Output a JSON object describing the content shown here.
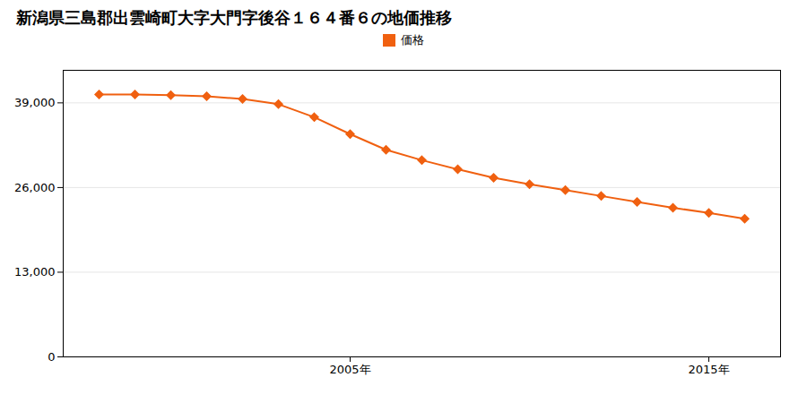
{
  "chart_data": {
    "type": "line",
    "title": "新潟県三島郡出雲崎町大字大門字後谷１６４番６の地価推移",
    "x": [
      1998,
      1999,
      2000,
      2001,
      2002,
      2003,
      2004,
      2005,
      2006,
      2007,
      2008,
      2009,
      2010,
      2011,
      2012,
      2013,
      2014,
      2015,
      2016
    ],
    "series": [
      {
        "name": "価格",
        "color": "#f06010",
        "marker": "diamond",
        "values": [
          40300,
          40300,
          40200,
          40000,
          39600,
          38800,
          36800,
          34200,
          31800,
          30200,
          28800,
          27500,
          26500,
          25600,
          24700,
          23800,
          22900,
          22100,
          21200
        ]
      }
    ],
    "xlim": [
      1997.0,
      2017.0
    ],
    "xticks": [
      {
        "value": 2005,
        "label": "2005年"
      },
      {
        "value": 2015,
        "label": "2015年"
      }
    ],
    "ylim": [
      0,
      44000
    ],
    "yticks": [
      0,
      {
        "value": 13000,
        "label": "13,000"
      },
      {
        "value": 26000,
        "label": "26,000"
      },
      {
        "value": 39000,
        "label": "39,000"
      }
    ],
    "grid": "y",
    "legend": "top"
  }
}
